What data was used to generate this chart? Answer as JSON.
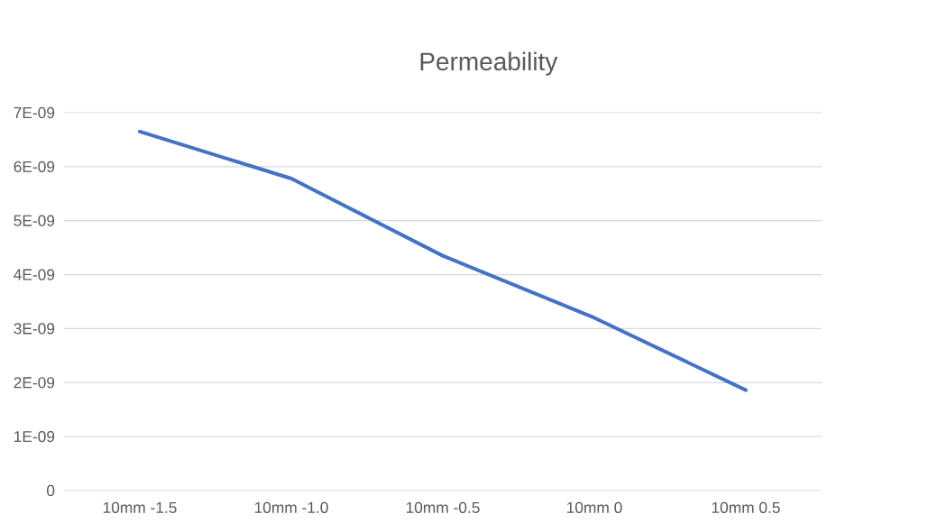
{
  "chart_data": {
    "type": "line",
    "title": "Permeability",
    "categories": [
      "10mm -1.5",
      "10mm -1.0",
      "10mm -0.5",
      "10mm 0",
      "10mm 0.5"
    ],
    "series": [
      {
        "color": "#4472c4",
        "values": [
          6.65e-09,
          5.78e-09,
          4.35e-09,
          3.2e-09,
          1.86e-09
        ]
      }
    ],
    "ylim": [
      0,
      7e-09
    ],
    "yticks": [
      0,
      {
        "value": 1e-09,
        "label": "1E-09"
      },
      {
        "value": 2e-09,
        "label": "2E-09"
      },
      {
        "value": 3e-09,
        "label": "3E-09"
      },
      {
        "value": 4e-09,
        "label": "4E-09"
      },
      {
        "value": 5e-09,
        "label": "5E-09"
      },
      {
        "value": 6e-09,
        "label": "6E-09"
      },
      {
        "value": 7e-09,
        "label": "7E-09"
      }
    ],
    "grid": "y",
    "legend": false,
    "marker": "none",
    "line_style": "solid"
  }
}
